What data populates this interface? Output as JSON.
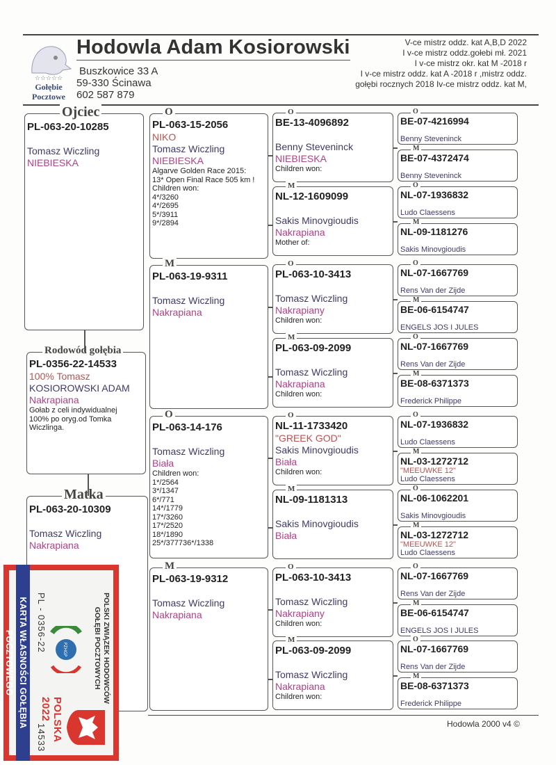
{
  "header": {
    "title": "Hodowla Adam Kosiorowski",
    "address_line1": "Buszkowice 33 A",
    "address_line2": "59-330 Ścinawa",
    "phone": "602 587 879",
    "logo_text_line1": "Gołębie",
    "logo_text_line2": "Pocztowe",
    "achievements": [
      "V-ce mistrz oddz. kat A,B,D 2022",
      "I v-ce mistrz oddz.gołebi mł. 2021",
      "I v-ce mistrz okr. kat M -2018 r",
      "I v-ce mistrz oddz. kat A -2018 r ,mistrz oddz.",
      "gołębi rocznych 2018 Iv-ce mistrz oddz. kat M,"
    ]
  },
  "pedigree": {
    "father": {
      "legend": "Ojciec",
      "ring": "PL-063-20-10285",
      "breeder": "Tomasz Wiczling",
      "color": "NIEBIESKA"
    },
    "subject": {
      "legend": "Rodowód gołębia",
      "ring": "PL-0356-22-14533",
      "name": "100% Tomasz",
      "breeder": "KOSIOROWSKI ADAM",
      "color": "Nakrapiana",
      "notes": [
        "Gołab z celi indywidualnej",
        "100% po oryg.od Tomka",
        "Wiczlinga."
      ]
    },
    "mother": {
      "legend": "Matka",
      "ring": "PL-063-20-10309",
      "breeder": "Tomasz Wiczling",
      "color": "Nakrapiana"
    },
    "gen2": [
      {
        "sex": "O",
        "ring": "PL-063-15-2056",
        "name": "NIKO",
        "breeder": "Tomasz Wiczling",
        "color": "NIEBIESKA",
        "notes": [
          "Algarve Golden Race 2015:",
          "13* Open Final Race 505 km !",
          "Children won:",
          "4*/3260",
          "4*/2695",
          "5*/3911",
          "9*/2894"
        ]
      },
      {
        "sex": "M",
        "ring": "PL-063-19-9311",
        "breeder": "Tomasz Wiczling",
        "color": "Nakrapiana"
      },
      {
        "sex": "O",
        "ring": "PL-063-14-176",
        "breeder": "Tomasz Wiczling",
        "color": "Biała",
        "notes": [
          "Children won:",
          "1*/2564",
          "3*/1347",
          "6*/771",
          "14*/1779",
          "17*/3260",
          "17*/2520",
          "18*/1890",
          "25*/377736*/1338"
        ]
      },
      {
        "sex": "M",
        "ring": "PL-063-19-9312",
        "breeder": "Tomasz Wiczling",
        "color": "Nakrapiana"
      }
    ],
    "gen3": [
      {
        "sex": "O",
        "ring": "BE-13-4096892",
        "breeder": "Benny Steveninck",
        "color": "NIEBIESKA",
        "notes": [
          "Children won:"
        ]
      },
      {
        "sex": "M",
        "ring": "NL-12-1609099",
        "breeder": "Sakis Minovgioudis",
        "color": "Nakrapiana",
        "notes": [
          "Mother of:"
        ]
      },
      {
        "sex": "O",
        "ring": "PL-063-10-3413",
        "breeder": "Tomasz Wiczling",
        "color": "Nakrapiany",
        "notes": [
          "Children won:"
        ]
      },
      {
        "sex": "M",
        "ring": "PL-063-09-2099",
        "breeder": "Tomasz Wiczling",
        "color": "Nakrapiana",
        "notes": [
          "Children won:"
        ]
      },
      {
        "sex": "O",
        "ring": "NL-11-1733420",
        "name": "\"GREEK GOD\"",
        "breeder": "Sakis Minovgioudis",
        "color": "Biała",
        "notes": [
          "Children won:"
        ]
      },
      {
        "sex": "M",
        "ring": "NL-09-1181313",
        "breeder": "Sakis Minovgioudis",
        "color": "Biała"
      },
      {
        "sex": "O",
        "ring": "PL-063-10-3413",
        "breeder": "Tomasz Wiczling",
        "color": "Nakrapiany",
        "notes": [
          "Children won:"
        ]
      },
      {
        "sex": "M",
        "ring": "PL-063-09-2099",
        "breeder": "Tomasz Wiczling",
        "color": "Nakrapiana",
        "notes": [
          "Children won:"
        ]
      }
    ],
    "gen4": [
      {
        "sex": "O",
        "ring": "BE-07-4216994",
        "breeder": "Benny Steveninck"
      },
      {
        "sex": "M",
        "ring": "BE-07-4372474",
        "breeder": "Benny Steveninck"
      },
      {
        "sex": "O",
        "ring": "NL-07-1936832",
        "breeder": "Ludo Claessens"
      },
      {
        "sex": "M",
        "ring": "NL-09-1181276",
        "breeder": "Sakis Minovgioudis"
      },
      {
        "sex": "O",
        "ring": "NL-07-1667769",
        "breeder": "Rens Van der Zijde"
      },
      {
        "sex": "M",
        "ring": "BE-06-6154747",
        "breeder": "ENGELS JOS I JULES"
      },
      {
        "sex": "O",
        "ring": "NL-07-1667769",
        "breeder": "Rens Van der Zijde"
      },
      {
        "sex": "M",
        "ring": "BE-08-6371373",
        "breeder": "Frederick Philippe"
      },
      {
        "sex": "O",
        "ring": "NL-07-1936832",
        "breeder": "Ludo Claessens"
      },
      {
        "sex": "M",
        "ring": "NL-03-1272712",
        "name": "\"MEEUWKE 12\"",
        "breeder": "Ludo Claessens"
      },
      {
        "sex": "O",
        "ring": "NL-06-1062201",
        "breeder": "Sakis Minovgioudis"
      },
      {
        "sex": "M",
        "ring": "NL-03-1272712",
        "name": "\"MEEUWKE 12\"",
        "breeder": "Ludo Claessens"
      },
      {
        "sex": "O",
        "ring": "NL-07-1667769",
        "breeder": "Rens Van der Zijde"
      },
      {
        "sex": "M",
        "ring": "BE-06-6154747",
        "breeder": "ENGELS JOS I JULES"
      },
      {
        "sex": "O",
        "ring": "NL-07-1667769",
        "breeder": "Rens Van der Zijde"
      },
      {
        "sex": "M",
        "ring": "BE-08-6371373",
        "breeder": "Frederick Philippe"
      }
    ]
  },
  "card": {
    "org_line1": "POLSKI ZWIĄZEK HODOWCÓW",
    "org_line2": "GOŁĘBI POCZTOWYCH",
    "logo_text": "PZHGP",
    "country_year": "POLSKA 2022",
    "ring_prefix": "PL - 0356-22",
    "ring_number": "14533",
    "caption": "KARTA WŁASNOŚCI GOŁĘBIA POCZTOWEGO"
  },
  "footer": {
    "software": "Hodowla 2000 v4 ©"
  },
  "colors": {
    "ring": "#222222",
    "pigeon_name": "#c0504d",
    "breeder": "#3d3a6b",
    "color_text": "#b23f86",
    "card_red": "#d9362f",
    "card_blue": "#2f3f8f"
  }
}
